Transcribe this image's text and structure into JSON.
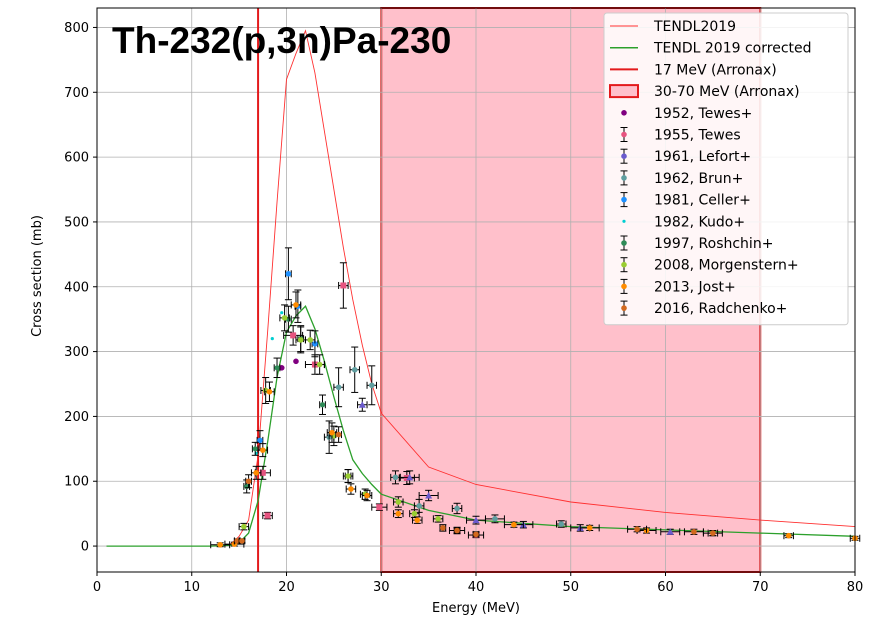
{
  "chart_data": {
    "type": "scatter",
    "title": "Th-232(p,3n)Pa-230",
    "xlabel": "Energy (MeV)",
    "ylabel": "Cross section (mb)",
    "xlim": [
      0,
      80
    ],
    "ylim": [
      -40,
      830
    ],
    "xticks": [
      0,
      10,
      20,
      30,
      40,
      50,
      60,
      70,
      80
    ],
    "yticks": [
      0,
      100,
      200,
      300,
      400,
      500,
      600,
      700,
      800
    ],
    "grid": true,
    "legend_position": "top-right",
    "bands": [
      {
        "name": "30-70 MeV (Arronax)",
        "x0": 30,
        "x1": 70,
        "fill": "#ffc0cb",
        "edge": "#e31a1c"
      }
    ],
    "vlines": [
      {
        "name": "17 MeV (Arronax)",
        "x": 17,
        "color": "#e31a1c"
      }
    ],
    "lines": [
      {
        "name": "TENDL2019",
        "color": "#ff3030",
        "width": 0.9,
        "x": [
          1,
          12,
          14,
          15,
          16,
          17,
          18,
          19,
          20,
          21,
          22,
          23,
          24,
          25,
          26,
          27,
          28,
          29,
          30,
          35,
          40,
          50,
          60,
          70,
          80
        ],
        "y": [
          0,
          0,
          2,
          15,
          40,
          140,
          330,
          530,
          720,
          760,
          795,
          730,
          640,
          550,
          460,
          380,
          310,
          250,
          205,
          122,
          95,
          68,
          52,
          40,
          30
        ]
      },
      {
        "name": "TENDL 2019 corrected",
        "color": "#2ca02c",
        "width": 1.3,
        "x": [
          1,
          12,
          14,
          15,
          16,
          17,
          18,
          19,
          20,
          21,
          22,
          23,
          24,
          25,
          26,
          27,
          28,
          29,
          30,
          35,
          40,
          50,
          60,
          70,
          80
        ],
        "y": [
          0,
          0,
          1,
          5,
          20,
          70,
          160,
          260,
          330,
          355,
          370,
          335,
          285,
          230,
          178,
          133,
          112,
          95,
          80,
          55,
          40,
          30,
          25,
          20,
          15
        ]
      }
    ],
    "series": [
      {
        "name": "1952, Tewes+",
        "color": "#800080",
        "marker": "dot",
        "errorbars": false,
        "points": [
          [
            19.5,
            275
          ],
          [
            21,
            285
          ]
        ]
      },
      {
        "name": "1955, Tewes",
        "color": "#e75480",
        "marker": "square",
        "points": [
          [
            17.5,
            113,
            10,
            0.8
          ],
          [
            18,
            47,
            5,
            0.5
          ],
          [
            20.7,
            325,
            15,
            1
          ],
          [
            23,
            280,
            15,
            1
          ],
          [
            26,
            402,
            35,
            0.5
          ],
          [
            29.8,
            60,
            5,
            0.8
          ],
          [
            32.7,
            105,
            10,
            0.8
          ],
          [
            38,
            24,
            5,
            0.8
          ],
          [
            40,
            17,
            4,
            0.8
          ]
        ]
      },
      {
        "name": "1961, Lefort+",
        "color": "#6a5acd",
        "marker": "tri",
        "points": [
          [
            28,
            218,
            10,
            0.5
          ],
          [
            33,
            106,
            10,
            1
          ],
          [
            35,
            78,
            8,
            1
          ],
          [
            40,
            40,
            6,
            1
          ],
          [
            45,
            33,
            5,
            1
          ],
          [
            51,
            28,
            5,
            1
          ],
          [
            60.5,
            22,
            4,
            1
          ]
        ]
      },
      {
        "name": "1962, Brun+",
        "color": "#5f9ea0",
        "marker": "dot",
        "points": [
          [
            24.5,
            168,
            25,
            0.5
          ],
          [
            25.5,
            245,
            30,
            0.5
          ],
          [
            27.2,
            272,
            35,
            0.5
          ],
          [
            29,
            248,
            30,
            0.5
          ],
          [
            31.5,
            106,
            10,
            0.5
          ],
          [
            34,
            62,
            10,
            0.5
          ],
          [
            38,
            58,
            8,
            0.5
          ],
          [
            42,
            42,
            6,
            1
          ],
          [
            49,
            34,
            5,
            0.5
          ]
        ]
      },
      {
        "name": "1981, Celler+",
        "color": "#1e90ff",
        "marker": "dot",
        "points": [
          [
            17.2,
            163,
            15,
            0.3
          ],
          [
            20.2,
            420,
            40,
            0.3
          ],
          [
            21.2,
            370,
            25,
            0.3
          ],
          [
            23,
            312,
            20,
            0.3
          ]
        ]
      },
      {
        "name": "1982, Kudo+",
        "color": "#00ced1",
        "marker": "tiny",
        "errorbars": false,
        "points": [
          [
            18.5,
            320
          ],
          [
            19.5,
            360
          ],
          [
            16.8,
            143
          ]
        ]
      },
      {
        "name": "1997, Roshchin+",
        "color": "#2e8b57",
        "marker": "star",
        "points": [
          [
            15.8,
            92,
            10,
            0.3
          ],
          [
            16.7,
            150,
            10,
            0.3
          ],
          [
            19,
            275,
            15,
            0.3
          ],
          [
            20.2,
            350,
            20,
            0.3
          ],
          [
            21.5,
            320,
            20,
            0.3
          ],
          [
            23.8,
            218,
            15,
            0.3
          ],
          [
            26.5,
            108,
            10,
            0.3
          ]
        ]
      },
      {
        "name": "2008, Morgenstern+",
        "color": "#9acd32",
        "marker": "dot",
        "points": [
          [
            15.5,
            30,
            5,
            0.5
          ],
          [
            17.8,
            240,
            20,
            0.5
          ],
          [
            19.8,
            352,
            20,
            0.5
          ],
          [
            21.5,
            318,
            20,
            0.5
          ],
          [
            22.5,
            318,
            15,
            0.5
          ],
          [
            23.5,
            280,
            15,
            0.5
          ],
          [
            25,
            170,
            15,
            0.5
          ],
          [
            26.5,
            108,
            10,
            0.5
          ],
          [
            28.3,
            80,
            8,
            0.5
          ],
          [
            31.8,
            68,
            8,
            0.5
          ],
          [
            33.5,
            50,
            6,
            0.5
          ],
          [
            36,
            42,
            5,
            0.5
          ]
        ]
      },
      {
        "name": "2013, Jost+",
        "color": "#ff8c00",
        "marker": "dot",
        "points": [
          [
            13,
            2,
            3,
            1
          ],
          [
            14.5,
            3,
            3,
            1
          ],
          [
            16.8,
            113,
            10,
            0.5
          ],
          [
            17.5,
            148,
            10,
            0.5
          ],
          [
            18.2,
            238,
            15,
            0.5
          ],
          [
            21,
            372,
            20,
            0.5
          ],
          [
            24.8,
            175,
            15,
            0.5
          ],
          [
            26.8,
            88,
            8,
            0.5
          ],
          [
            28.5,
            78,
            8,
            0.5
          ],
          [
            31.8,
            50,
            6,
            0.5
          ],
          [
            33.8,
            40,
            5,
            0.5
          ],
          [
            44,
            33,
            4,
            1
          ],
          [
            52,
            28,
            4,
            1
          ],
          [
            58,
            24,
            4,
            1
          ],
          [
            65,
            20,
            4,
            1
          ],
          [
            73,
            16,
            3,
            0.5
          ],
          [
            80,
            12,
            3,
            0.5
          ]
        ]
      },
      {
        "name": "2016, Radchenko+",
        "color": "#d2691e",
        "marker": "dot",
        "points": [
          [
            14.8,
            8,
            3,
            0.3
          ],
          [
            15.3,
            8,
            3,
            0.3
          ],
          [
            16,
            100,
            10,
            0.3
          ],
          [
            25.5,
            172,
            12,
            0.3
          ],
          [
            36.5,
            28,
            5,
            0.3
          ],
          [
            38,
            24,
            4,
            0.3
          ],
          [
            40,
            18,
            4,
            0.3
          ],
          [
            57,
            26,
            4,
            1
          ],
          [
            63,
            22,
            4,
            1
          ],
          [
            65,
            20,
            4,
            0.5
          ]
        ]
      }
    ],
    "legend": [
      {
        "label": "TENDL2019",
        "kind": "line",
        "color": "#ff3030"
      },
      {
        "label": "TENDL 2019 corrected",
        "kind": "line",
        "color": "#2ca02c"
      },
      {
        "label": "17 MeV (Arronax)",
        "kind": "line",
        "color": "#e31a1c"
      },
      {
        "label": "30-70 MeV (Arronax)",
        "kind": "patch",
        "color": "#ffc0cb",
        "edge": "#e31a1c"
      },
      {
        "label": "1952, Tewes+",
        "kind": "dot",
        "color": "#800080"
      },
      {
        "label": "1955, Tewes",
        "kind": "err",
        "color": "#e75480"
      },
      {
        "label": "1961, Lefort+",
        "kind": "err",
        "color": "#6a5acd"
      },
      {
        "label": "1962, Brun+",
        "kind": "err",
        "color": "#5f9ea0"
      },
      {
        "label": "1981, Celler+",
        "kind": "err",
        "color": "#1e90ff"
      },
      {
        "label": "1982, Kudo+",
        "kind": "tiny",
        "color": "#00ced1"
      },
      {
        "label": "1997, Roshchin+",
        "kind": "err",
        "color": "#2e8b57"
      },
      {
        "label": "2008, Morgenstern+",
        "kind": "err",
        "color": "#9acd32"
      },
      {
        "label": "2013, Jost+",
        "kind": "err",
        "color": "#ff8c00"
      },
      {
        "label": "2016, Radchenko+",
        "kind": "err",
        "color": "#d2691e"
      }
    ]
  }
}
